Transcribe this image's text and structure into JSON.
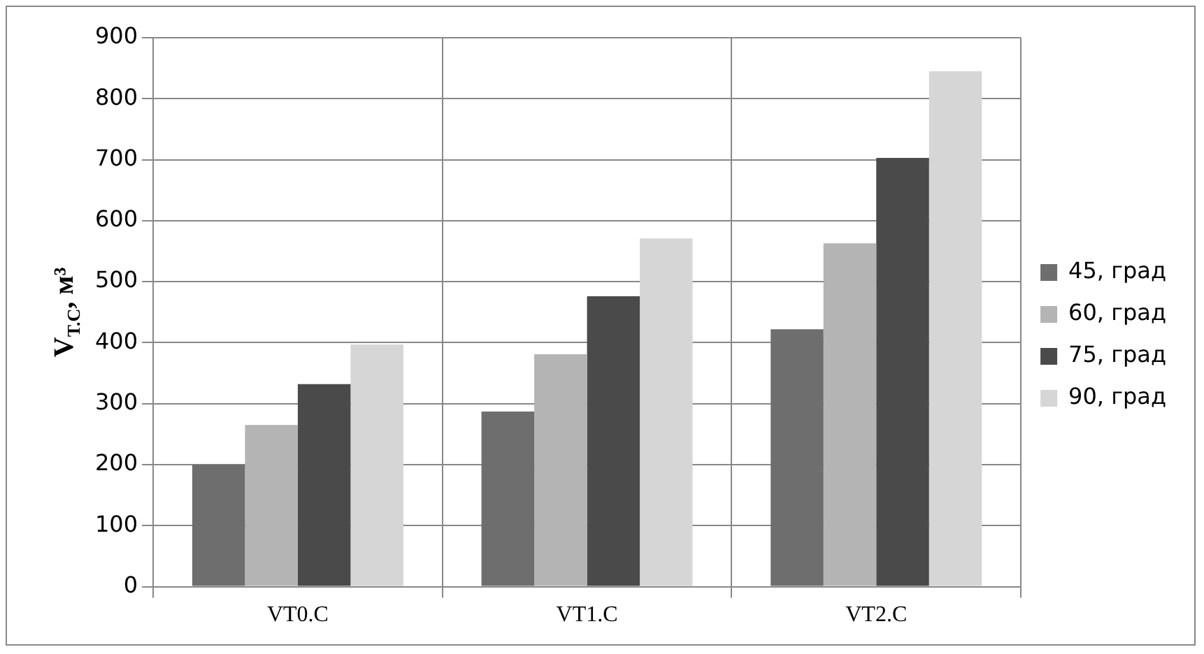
{
  "chart_data": {
    "type": "bar",
    "ylabel": "V$_{T.C}$, м³",
    "categories": [
      "VT0.C",
      "VT1.C",
      "VT2.C"
    ],
    "series": [
      {
        "name": "45, град",
        "color": "#6e6e6e",
        "values": [
          200,
          287,
          422
        ]
      },
      {
        "name": "60, град",
        "color": "#b4b4b4",
        "values": [
          265,
          381,
          563
        ]
      },
      {
        "name": "75, град",
        "color": "#4a4a4a",
        "values": [
          332,
          476,
          703
        ]
      },
      {
        "name": "90, град",
        "color": "#d6d6d6",
        "values": [
          397,
          571,
          845
        ]
      }
    ],
    "ylim": [
      0,
      900
    ],
    "yticks": [
      0,
      100,
      200,
      300,
      400,
      500,
      600,
      700,
      800,
      900
    ],
    "grid": true,
    "legend": "right"
  }
}
